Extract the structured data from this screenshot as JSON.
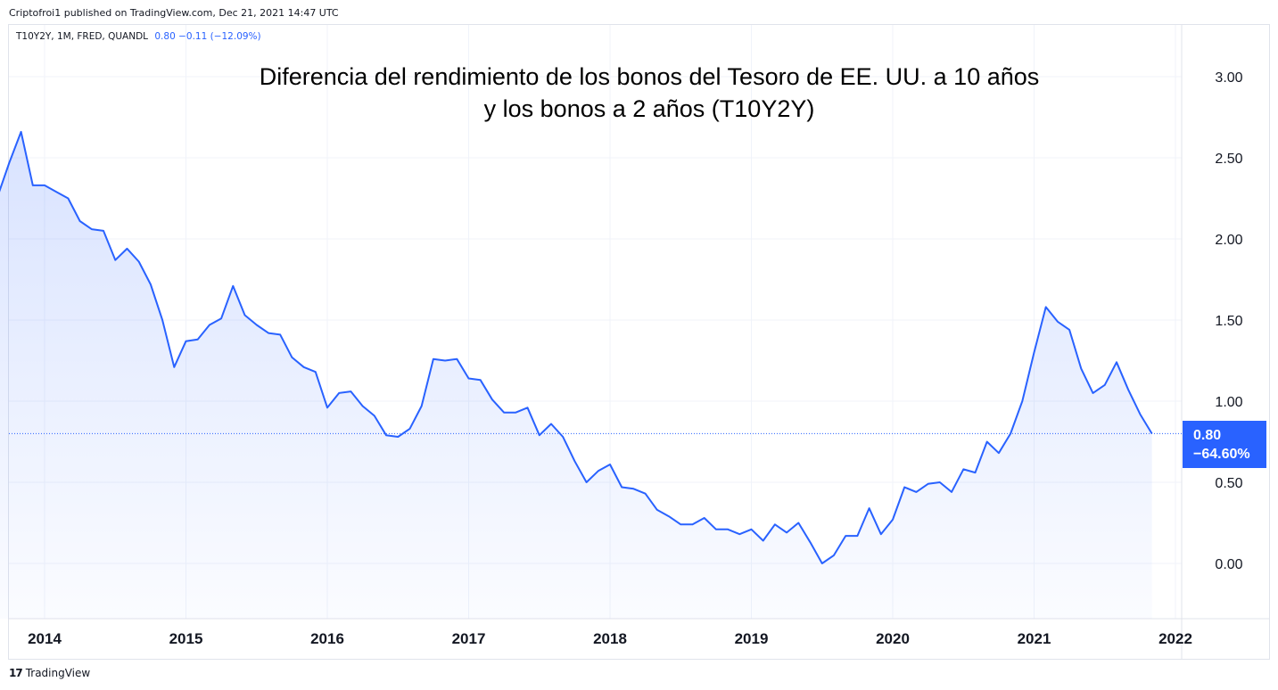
{
  "header": {
    "published": "Criptofroi1 published on TradingView.com, Dec 21, 2021 14:47 UTC"
  },
  "legend": {
    "symbol": "T10Y2Y, 1M, FRED, QUANDL",
    "values": "0.80  −0.11 (−12.09%)"
  },
  "last_badge": {
    "price": "0.80",
    "change": "−64.60%"
  },
  "footer": {
    "brand": "TradingView",
    "logo_glyph": "17"
  },
  "colors": {
    "line": "#2962ff",
    "accent": "#2962ff"
  },
  "chart_data": {
    "type": "area",
    "title": [
      "Diferencia del rendimiento de los bonos del Tesoro de EE. UU. a 10 años",
      "y los bonos a 2 años (T10Y2Y)"
    ],
    "xlabel": "",
    "ylabel": "",
    "ylim": [
      -0.35,
      3.3
    ],
    "y_ticks": [
      "3.00",
      "2.50",
      "2.00",
      "1.50",
      "1.00",
      "0.50",
      "0.00"
    ],
    "x_ticks": [
      "2014",
      "2015",
      "2016",
      "2017",
      "2018",
      "2019",
      "2020",
      "2021",
      "2022"
    ],
    "grid": true,
    "last_value": 0.8,
    "start": "2013-09",
    "frequency": "monthly",
    "values": [
      2.26,
      2.47,
      2.66,
      2.33,
      2.33,
      2.29,
      2.25,
      2.11,
      2.06,
      2.05,
      1.87,
      1.94,
      1.86,
      1.72,
      1.5,
      1.21,
      1.37,
      1.38,
      1.47,
      1.51,
      1.71,
      1.53,
      1.47,
      1.42,
      1.41,
      1.27,
      1.21,
      1.18,
      0.96,
      1.05,
      1.06,
      0.97,
      0.91,
      0.79,
      0.78,
      0.83,
      0.97,
      1.26,
      1.25,
      1.26,
      1.14,
      1.13,
      1.01,
      0.93,
      0.93,
      0.96,
      0.79,
      0.86,
      0.78,
      0.63,
      0.5,
      0.57,
      0.61,
      0.47,
      0.46,
      0.43,
      0.33,
      0.29,
      0.24,
      0.24,
      0.28,
      0.21,
      0.21,
      0.18,
      0.21,
      0.14,
      0.24,
      0.19,
      0.25,
      0.13,
      0.0,
      0.05,
      0.17,
      0.17,
      0.34,
      0.18,
      0.27,
      0.47,
      0.44,
      0.49,
      0.5,
      0.44,
      0.58,
      0.56,
      0.75,
      0.68,
      0.8,
      1.0,
      1.3,
      1.58,
      1.49,
      1.44,
      1.2,
      1.05,
      1.1,
      1.24,
      1.07,
      0.92,
      0.8
    ]
  }
}
